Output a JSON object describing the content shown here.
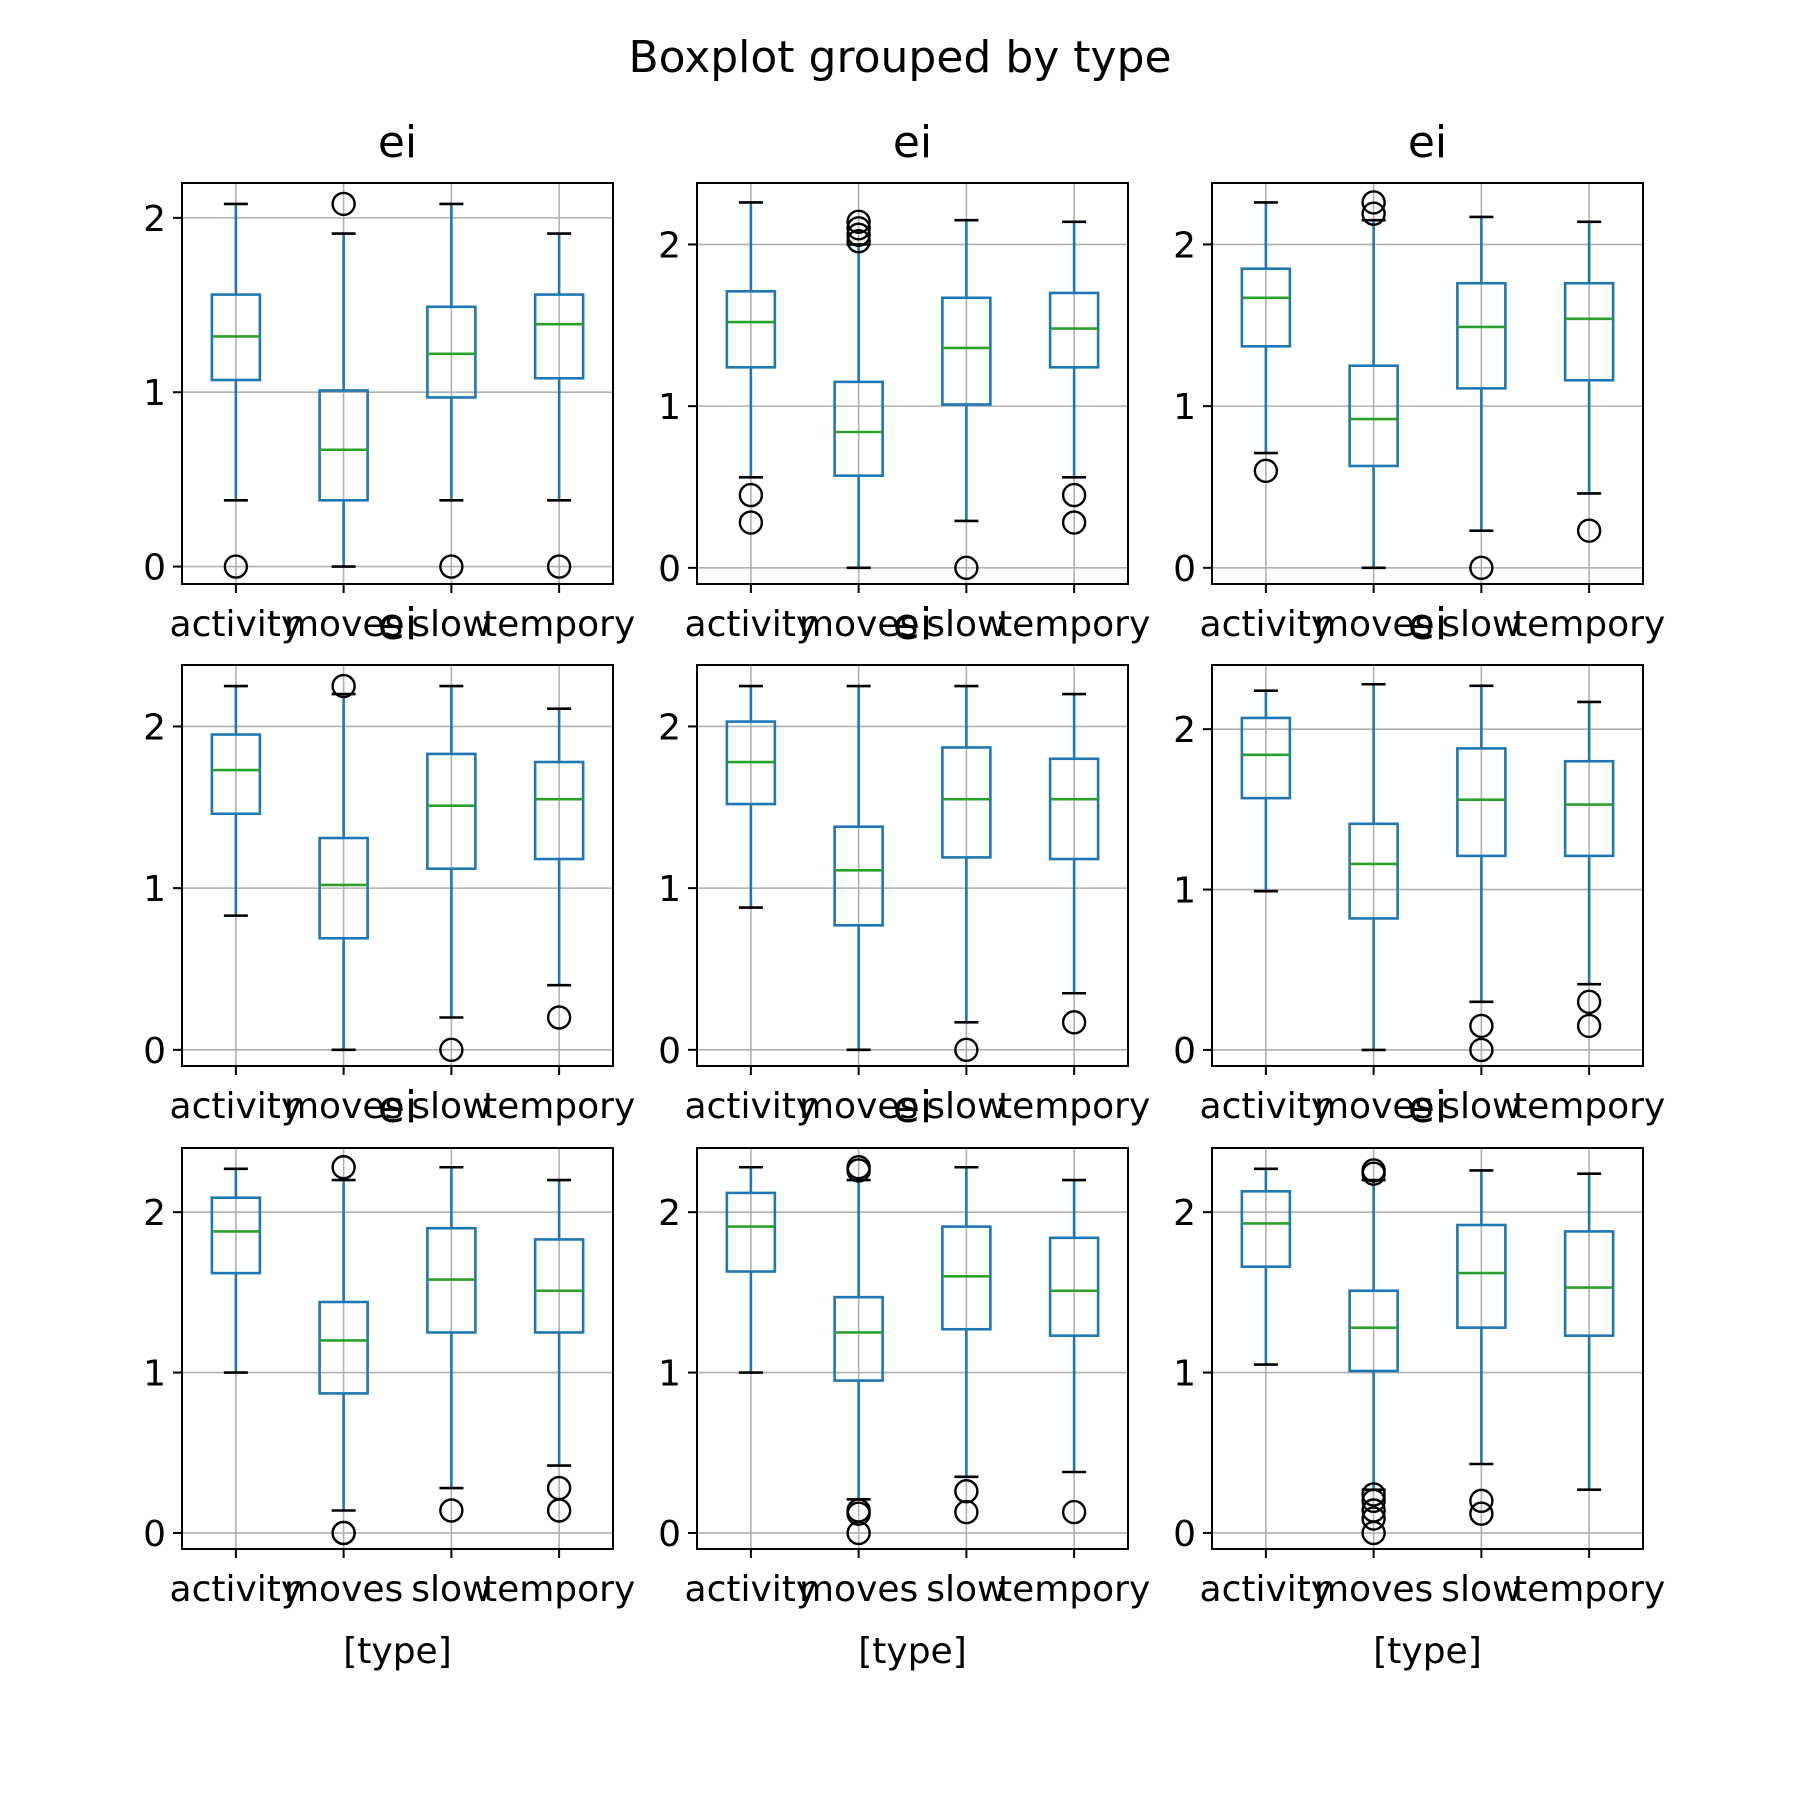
{
  "chart_data": {
    "suptitle": "Boxplot grouped by type",
    "type": "boxplot",
    "grid": true,
    "categories": [
      "activity",
      "moves",
      "slow",
      "tempory"
    ],
    "xlabel": "[type]",
    "colors": {
      "box": "#1f77b4",
      "median": "#2ca02c",
      "cap": "#000000",
      "flier": "#000000",
      "grid": "#b0b0b0"
    },
    "panels": [
      {
        "title": "ei",
        "ylim": [
          -0.1,
          2.2
        ],
        "yticks": [
          0,
          1,
          2
        ],
        "boxes": [
          {
            "whislo": 0.38,
            "q1": 1.07,
            "med": 1.32,
            "q3": 1.56,
            "whishi": 2.08,
            "fliers": [
              0.0
            ]
          },
          {
            "whislo": 0.0,
            "q1": 0.38,
            "med": 0.67,
            "q3": 1.01,
            "whishi": 1.91,
            "fliers": [
              2.08
            ]
          },
          {
            "whislo": 0.38,
            "q1": 0.97,
            "med": 1.22,
            "q3": 1.49,
            "whishi": 2.08,
            "fliers": [
              0.0
            ]
          },
          {
            "whislo": 0.38,
            "q1": 1.08,
            "med": 1.39,
            "q3": 1.56,
            "whishi": 1.91,
            "fliers": [
              0.0
            ]
          }
        ]
      },
      {
        "title": "ei",
        "ylim": [
          -0.1,
          2.38
        ],
        "yticks": [
          0,
          1,
          2
        ],
        "boxes": [
          {
            "whislo": 0.56,
            "q1": 1.24,
            "med": 1.52,
            "q3": 1.71,
            "whishi": 2.26,
            "fliers": [
              0.28,
              0.45
            ]
          },
          {
            "whislo": 0.0,
            "q1": 0.57,
            "med": 0.84,
            "q3": 1.15,
            "whishi": 2.0,
            "fliers": [
              2.02,
              2.06,
              2.1,
              2.14
            ]
          },
          {
            "whislo": 0.29,
            "q1": 1.01,
            "med": 1.36,
            "q3": 1.67,
            "whishi": 2.15,
            "fliers": [
              0.0
            ]
          },
          {
            "whislo": 0.56,
            "q1": 1.24,
            "med": 1.48,
            "q3": 1.7,
            "whishi": 2.14,
            "fliers": [
              0.28,
              0.45
            ]
          }
        ]
      },
      {
        "title": "ei",
        "ylim": [
          -0.1,
          2.38
        ],
        "yticks": [
          0,
          1,
          2
        ],
        "boxes": [
          {
            "whislo": 0.71,
            "q1": 1.37,
            "med": 1.67,
            "q3": 1.85,
            "whishi": 2.26,
            "fliers": [
              0.6
            ]
          },
          {
            "whislo": 0.0,
            "q1": 0.63,
            "med": 0.92,
            "q3": 1.25,
            "whishi": 2.15,
            "fliers": [
              2.19,
              2.26
            ]
          },
          {
            "whislo": 0.23,
            "q1": 1.11,
            "med": 1.49,
            "q3": 1.76,
            "whishi": 2.17,
            "fliers": [
              0.0
            ]
          },
          {
            "whislo": 0.46,
            "q1": 1.16,
            "med": 1.54,
            "q3": 1.76,
            "whishi": 2.14,
            "fliers": [
              0.23
            ]
          }
        ]
      },
      {
        "title": "ei",
        "ylim": [
          -0.1,
          2.38
        ],
        "yticks": [
          0,
          1,
          2
        ],
        "boxes": [
          {
            "whislo": 0.83,
            "q1": 1.46,
            "med": 1.73,
            "q3": 1.95,
            "whishi": 2.25,
            "fliers": []
          },
          {
            "whislo": 0.0,
            "q1": 0.69,
            "med": 1.02,
            "q3": 1.31,
            "whishi": 2.2,
            "fliers": [
              2.25
            ]
          },
          {
            "whislo": 0.2,
            "q1": 1.12,
            "med": 1.51,
            "q3": 1.83,
            "whishi": 2.25,
            "fliers": [
              0.0
            ]
          },
          {
            "whislo": 0.4,
            "q1": 1.18,
            "med": 1.55,
            "q3": 1.78,
            "whishi": 2.11,
            "fliers": [
              0.2
            ]
          }
        ]
      },
      {
        "title": "ei",
        "ylim": [
          -0.1,
          2.38
        ],
        "yticks": [
          0,
          1,
          2
        ],
        "boxes": [
          {
            "whislo": 0.88,
            "q1": 1.52,
            "med": 1.78,
            "q3": 2.03,
            "whishi": 2.25,
            "fliers": []
          },
          {
            "whislo": 0.0,
            "q1": 0.77,
            "med": 1.11,
            "q3": 1.38,
            "whishi": 2.25,
            "fliers": []
          },
          {
            "whislo": 0.17,
            "q1": 1.19,
            "med": 1.55,
            "q3": 1.87,
            "whishi": 2.25,
            "fliers": [
              0.0
            ]
          },
          {
            "whislo": 0.35,
            "q1": 1.18,
            "med": 1.55,
            "q3": 1.8,
            "whishi": 2.2,
            "fliers": [
              0.17
            ]
          }
        ]
      },
      {
        "title": "ei",
        "ylim": [
          -0.1,
          2.4
        ],
        "yticks": [
          0,
          1,
          2
        ],
        "boxes": [
          {
            "whislo": 0.99,
            "q1": 1.57,
            "med": 1.84,
            "q3": 2.07,
            "whishi": 2.24,
            "fliers": []
          },
          {
            "whislo": 0.0,
            "q1": 0.82,
            "med": 1.16,
            "q3": 1.41,
            "whishi": 2.28,
            "fliers": []
          },
          {
            "whislo": 0.3,
            "q1": 1.21,
            "med": 1.56,
            "q3": 1.88,
            "whishi": 2.27,
            "fliers": [
              0.0,
              0.15
            ]
          },
          {
            "whislo": 0.41,
            "q1": 1.21,
            "med": 1.53,
            "q3": 1.8,
            "whishi": 2.17,
            "fliers": [
              0.15,
              0.3
            ]
          }
        ]
      },
      {
        "title": "ei",
        "ylim": [
          -0.1,
          2.4
        ],
        "yticks": [
          0,
          1,
          2
        ],
        "boxes": [
          {
            "whislo": 1.0,
            "q1": 1.62,
            "med": 1.88,
            "q3": 2.09,
            "whishi": 2.27,
            "fliers": []
          },
          {
            "whislo": 0.14,
            "q1": 0.87,
            "med": 1.2,
            "q3": 1.44,
            "whishi": 2.2,
            "fliers": [
              0.0,
              0.0,
              2.28
            ]
          },
          {
            "whislo": 0.28,
            "q1": 1.25,
            "med": 1.58,
            "q3": 1.9,
            "whishi": 2.28,
            "fliers": [
              0.14
            ]
          },
          {
            "whislo": 0.42,
            "q1": 1.25,
            "med": 1.51,
            "q3": 1.83,
            "whishi": 2.2,
            "fliers": [
              0.14,
              0.28
            ]
          }
        ]
      },
      {
        "title": "ei",
        "ylim": [
          -0.1,
          2.4
        ],
        "yticks": [
          0,
          1,
          2
        ],
        "boxes": [
          {
            "whislo": 1.0,
            "q1": 1.63,
            "med": 1.91,
            "q3": 2.12,
            "whishi": 2.28,
            "fliers": []
          },
          {
            "whislo": 0.21,
            "q1": 0.95,
            "med": 1.25,
            "q3": 1.47,
            "whishi": 2.2,
            "fliers": [
              0.0,
              0.12,
              0.14,
              2.26,
              2.28
            ]
          },
          {
            "whislo": 0.35,
            "q1": 1.27,
            "med": 1.6,
            "q3": 1.91,
            "whishi": 2.28,
            "fliers": [
              0.13,
              0.26
            ]
          },
          {
            "whislo": 0.38,
            "q1": 1.23,
            "med": 1.51,
            "q3": 1.84,
            "whishi": 2.2,
            "fliers": [
              0.13
            ]
          }
        ]
      },
      {
        "title": "ei",
        "ylim": [
          -0.1,
          2.4
        ],
        "yticks": [
          0,
          1,
          2
        ],
        "boxes": [
          {
            "whislo": 1.05,
            "q1": 1.66,
            "med": 1.93,
            "q3": 2.13,
            "whishi": 2.27,
            "fliers": []
          },
          {
            "whislo": 0.27,
            "q1": 1.01,
            "med": 1.28,
            "q3": 1.51,
            "whishi": 2.2,
            "fliers": [
              0.0,
              0.09,
              0.14,
              0.2,
              0.24,
              2.24,
              2.26
            ]
          },
          {
            "whislo": 0.43,
            "q1": 1.28,
            "med": 1.62,
            "q3": 1.92,
            "whishi": 2.26,
            "fliers": [
              0.12,
              0.2
            ]
          },
          {
            "whislo": 0.27,
            "q1": 1.23,
            "med": 1.53,
            "q3": 1.88,
            "whishi": 2.24,
            "fliers": []
          }
        ]
      }
    ]
  }
}
